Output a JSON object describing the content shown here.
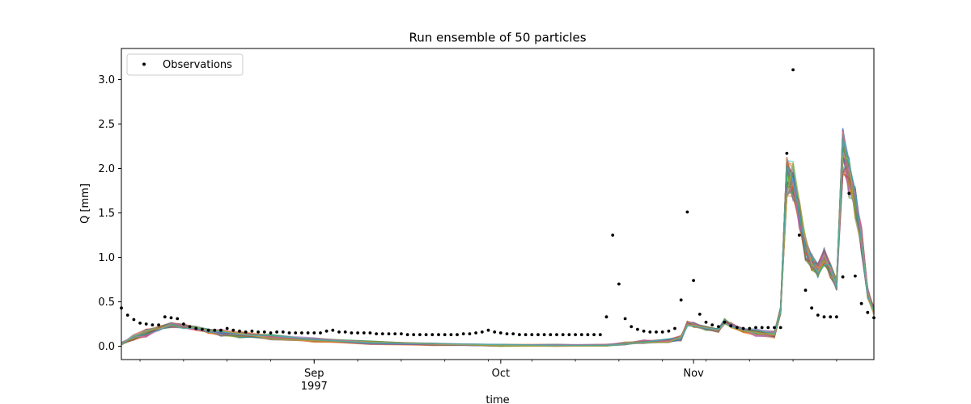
{
  "chart_data": {
    "type": "line",
    "title": "Run ensemble of 50 particles",
    "xlabel": "time",
    "ylabel": "Q [mm]",
    "x_range": [
      "1997-08-01",
      "1997-11-30"
    ],
    "ylim": [
      -0.15,
      3.35
    ],
    "grid": false,
    "legend": {
      "position": "top-left",
      "entries": [
        "Observations"
      ]
    },
    "x_ticks": [
      {
        "date": "1997-09-01",
        "label": "Sep",
        "sublabel": "1997"
      },
      {
        "date": "1997-10-01",
        "label": "Oct",
        "sublabel": ""
      },
      {
        "date": "1997-11-01",
        "label": "Nov",
        "sublabel": ""
      }
    ],
    "y_ticks": [
      0.0,
      0.5,
      1.0,
      1.5,
      2.0,
      2.5,
      3.0
    ],
    "y_tick_labels": [
      "0.0",
      "0.5",
      "1.0",
      "1.5",
      "2.0",
      "2.5",
      "3.0"
    ],
    "observations": {
      "name": "Observations",
      "color": "#000000",
      "points": [
        [
          "1997-08-01",
          0.43
        ],
        [
          "1997-08-02",
          0.35
        ],
        [
          "1997-08-03",
          0.3
        ],
        [
          "1997-08-04",
          0.26
        ],
        [
          "1997-08-05",
          0.25
        ],
        [
          "1997-08-06",
          0.24
        ],
        [
          "1997-08-07",
          0.24
        ],
        [
          "1997-08-08",
          0.33
        ],
        [
          "1997-08-09",
          0.32
        ],
        [
          "1997-08-10",
          0.31
        ],
        [
          "1997-08-11",
          0.25
        ],
        [
          "1997-08-12",
          0.22
        ],
        [
          "1997-08-13",
          0.2
        ],
        [
          "1997-08-14",
          0.19
        ],
        [
          "1997-08-15",
          0.18
        ],
        [
          "1997-08-16",
          0.18
        ],
        [
          "1997-08-17",
          0.18
        ],
        [
          "1997-08-18",
          0.2
        ],
        [
          "1997-08-19",
          0.18
        ],
        [
          "1997-08-20",
          0.17
        ],
        [
          "1997-08-21",
          0.16
        ],
        [
          "1997-08-22",
          0.17
        ],
        [
          "1997-08-23",
          0.16
        ],
        [
          "1997-08-24",
          0.16
        ],
        [
          "1997-08-25",
          0.15
        ],
        [
          "1997-08-26",
          0.16
        ],
        [
          "1997-08-27",
          0.16
        ],
        [
          "1997-08-28",
          0.15
        ],
        [
          "1997-08-29",
          0.15
        ],
        [
          "1997-08-30",
          0.15
        ],
        [
          "1997-08-31",
          0.15
        ],
        [
          "1997-09-01",
          0.15
        ],
        [
          "1997-09-02",
          0.15
        ],
        [
          "1997-09-03",
          0.17
        ],
        [
          "1997-09-04",
          0.18
        ],
        [
          "1997-09-05",
          0.16
        ],
        [
          "1997-09-06",
          0.16
        ],
        [
          "1997-09-07",
          0.15
        ],
        [
          "1997-09-08",
          0.15
        ],
        [
          "1997-09-09",
          0.15
        ],
        [
          "1997-09-10",
          0.15
        ],
        [
          "1997-09-11",
          0.14
        ],
        [
          "1997-09-12",
          0.14
        ],
        [
          "1997-09-13",
          0.14
        ],
        [
          "1997-09-14",
          0.14
        ],
        [
          "1997-09-15",
          0.14
        ],
        [
          "1997-09-16",
          0.13
        ],
        [
          "1997-09-17",
          0.13
        ],
        [
          "1997-09-18",
          0.13
        ],
        [
          "1997-09-19",
          0.13
        ],
        [
          "1997-09-20",
          0.13
        ],
        [
          "1997-09-21",
          0.13
        ],
        [
          "1997-09-22",
          0.13
        ],
        [
          "1997-09-23",
          0.13
        ],
        [
          "1997-09-24",
          0.13
        ],
        [
          "1997-09-25",
          0.14
        ],
        [
          "1997-09-26",
          0.14
        ],
        [
          "1997-09-27",
          0.15
        ],
        [
          "1997-09-28",
          0.16
        ],
        [
          "1997-09-29",
          0.18
        ],
        [
          "1997-09-30",
          0.16
        ],
        [
          "1997-10-01",
          0.15
        ],
        [
          "1997-10-02",
          0.14
        ],
        [
          "1997-10-03",
          0.14
        ],
        [
          "1997-10-04",
          0.13
        ],
        [
          "1997-10-05",
          0.13
        ],
        [
          "1997-10-06",
          0.13
        ],
        [
          "1997-10-07",
          0.13
        ],
        [
          "1997-10-08",
          0.13
        ],
        [
          "1997-10-09",
          0.13
        ],
        [
          "1997-10-10",
          0.13
        ],
        [
          "1997-10-11",
          0.13
        ],
        [
          "1997-10-12",
          0.13
        ],
        [
          "1997-10-13",
          0.13
        ],
        [
          "1997-10-14",
          0.13
        ],
        [
          "1997-10-15",
          0.13
        ],
        [
          "1997-10-16",
          0.13
        ],
        [
          "1997-10-17",
          0.13
        ],
        [
          "1997-10-18",
          0.33
        ],
        [
          "1997-10-19",
          1.25
        ],
        [
          "1997-10-20",
          0.7
        ],
        [
          "1997-10-21",
          0.31
        ],
        [
          "1997-10-22",
          0.22
        ],
        [
          "1997-10-23",
          0.19
        ],
        [
          "1997-10-24",
          0.17
        ],
        [
          "1997-10-25",
          0.16
        ],
        [
          "1997-10-26",
          0.16
        ],
        [
          "1997-10-27",
          0.16
        ],
        [
          "1997-10-28",
          0.17
        ],
        [
          "1997-10-29",
          0.2
        ],
        [
          "1997-10-30",
          0.52
        ],
        [
          "1997-10-31",
          1.51
        ],
        [
          "1997-11-01",
          0.74
        ],
        [
          "1997-11-02",
          0.36
        ],
        [
          "1997-11-03",
          0.27
        ],
        [
          "1997-11-04",
          0.24
        ],
        [
          "1997-11-05",
          0.22
        ],
        [
          "1997-11-06",
          0.27
        ],
        [
          "1997-11-07",
          0.23
        ],
        [
          "1997-11-08",
          0.21
        ],
        [
          "1997-11-09",
          0.2
        ],
        [
          "1997-11-10",
          0.2
        ],
        [
          "1997-11-11",
          0.21
        ],
        [
          "1997-11-12",
          0.21
        ],
        [
          "1997-11-13",
          0.21
        ],
        [
          "1997-11-14",
          0.21
        ],
        [
          "1997-11-15",
          0.21
        ],
        [
          "1997-11-16",
          2.17
        ],
        [
          "1997-11-17",
          3.11
        ],
        [
          "1997-11-18",
          1.25
        ],
        [
          "1997-11-19",
          0.63
        ],
        [
          "1997-11-20",
          0.43
        ],
        [
          "1997-11-21",
          0.35
        ],
        [
          "1997-11-22",
          0.33
        ],
        [
          "1997-11-23",
          0.33
        ],
        [
          "1997-11-24",
          0.33
        ],
        [
          "1997-11-25",
          0.78
        ],
        [
          "1997-11-26",
          1.72
        ],
        [
          "1997-11-27",
          0.79
        ],
        [
          "1997-11-28",
          0.48
        ],
        [
          "1997-11-29",
          0.38
        ],
        [
          "1997-11-30",
          0.32
        ]
      ]
    },
    "ensemble": {
      "members": 50,
      "base": [
        [
          "1997-08-01",
          0.03
        ],
        [
          "1997-08-03",
          0.1
        ],
        [
          "1997-08-05",
          0.15
        ],
        [
          "1997-08-07",
          0.2
        ],
        [
          "1997-08-09",
          0.24
        ],
        [
          "1997-08-11",
          0.22
        ],
        [
          "1997-08-13",
          0.2
        ],
        [
          "1997-08-15",
          0.17
        ],
        [
          "1997-08-17",
          0.15
        ],
        [
          "1997-08-20",
          0.13
        ],
        [
          "1997-08-25",
          0.1
        ],
        [
          "1997-09-01",
          0.07
        ],
        [
          "1997-09-10",
          0.04
        ],
        [
          "1997-09-20",
          0.02
        ],
        [
          "1997-10-01",
          0.01
        ],
        [
          "1997-10-10",
          0.01
        ],
        [
          "1997-10-18",
          0.01
        ],
        [
          "1997-10-21",
          0.03
        ],
        [
          "1997-10-24",
          0.05
        ],
        [
          "1997-10-28",
          0.06
        ],
        [
          "1997-10-30",
          0.09
        ],
        [
          "1997-10-31",
          0.25
        ],
        [
          "1997-11-01",
          0.24
        ],
        [
          "1997-11-03",
          0.2
        ],
        [
          "1997-11-05",
          0.18
        ],
        [
          "1997-11-06",
          0.28
        ],
        [
          "1997-11-07",
          0.24
        ],
        [
          "1997-11-09",
          0.18
        ],
        [
          "1997-11-11",
          0.15
        ],
        [
          "1997-11-14",
          0.13
        ],
        [
          "1997-11-15",
          0.4
        ],
        [
          "1997-11-16",
          1.9
        ],
        [
          "1997-11-17",
          1.85
        ],
        [
          "1997-11-18",
          1.5
        ],
        [
          "1997-11-19",
          1.1
        ],
        [
          "1997-11-20",
          0.95
        ],
        [
          "1997-11-21",
          0.85
        ],
        [
          "1997-11-22",
          1.0
        ],
        [
          "1997-11-23",
          0.85
        ],
        [
          "1997-11-24",
          0.7
        ],
        [
          "1997-11-25",
          2.2
        ],
        [
          "1997-11-26",
          1.9
        ],
        [
          "1997-11-27",
          1.6
        ],
        [
          "1997-11-28",
          1.2
        ],
        [
          "1997-11-29",
          0.6
        ],
        [
          "1997-11-30",
          0.4
        ]
      ],
      "colors": [
        "#1f77b4",
        "#ff7f0e",
        "#2ca02c",
        "#d62728",
        "#9467bd",
        "#8c564b",
        "#e377c2",
        "#7f7f7f",
        "#bcbd22",
        "#17becf"
      ]
    }
  }
}
